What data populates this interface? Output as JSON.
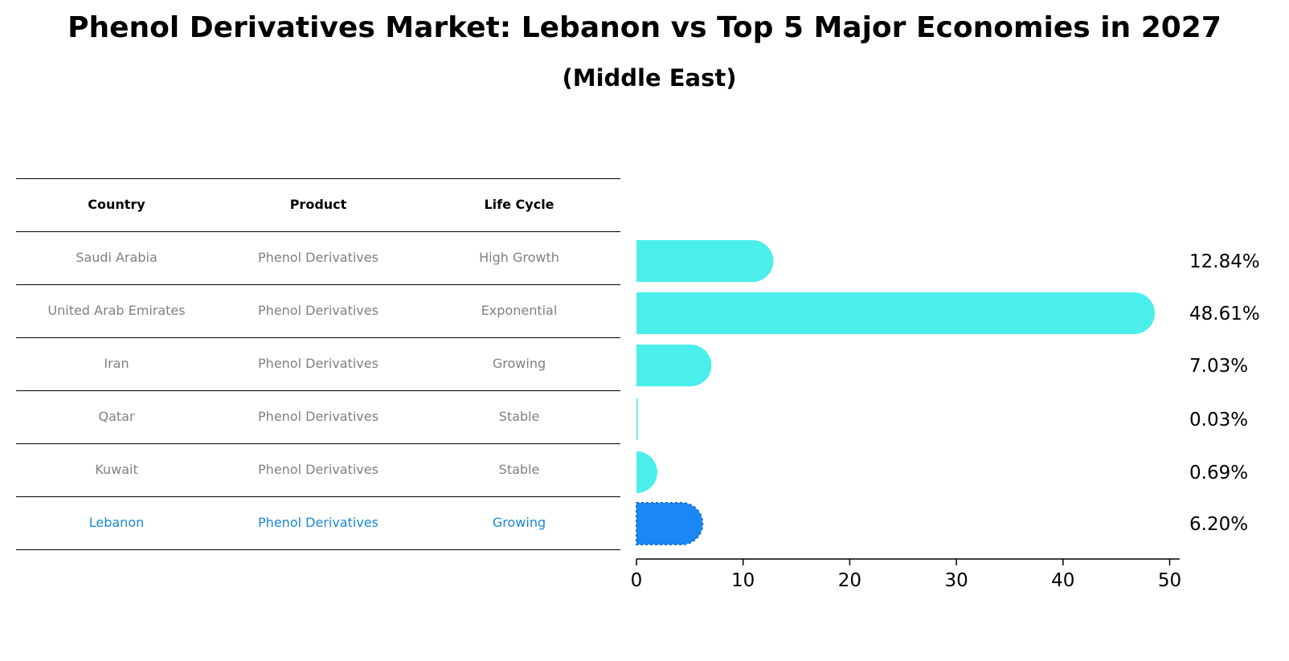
{
  "chart_data": {
    "type": "bar",
    "orientation": "horizontal",
    "title": "Phenol Derivatives Market: Lebanon vs Top 5 Major Economies in 2027",
    "subtitle": "(Middle East)",
    "categories": [
      "Saudi Arabia",
      "United Arab Emirates",
      "Iran",
      "Qatar",
      "Kuwait",
      "Lebanon"
    ],
    "values": [
      12.84,
      48.61,
      7.03,
      0.03,
      0.69,
      6.2
    ],
    "value_labels": [
      "12.84%",
      "48.61%",
      "7.03%",
      "0.03%",
      "0.69%",
      "6.20%"
    ],
    "xlim": [
      0,
      50
    ],
    "xticks": [
      0,
      10,
      20,
      30,
      40,
      50
    ],
    "grid": false,
    "highlight_index": 5,
    "colors": {
      "default": "#4aeeea",
      "highlight": "#1a87f5",
      "highlight_text": "#1a87d6"
    },
    "table": {
      "headers": [
        "Country",
        "Product",
        "Life Cycle"
      ],
      "rows": [
        [
          "Saudi Arabia",
          "Phenol Derivatives",
          "High Growth"
        ],
        [
          "United Arab Emirates",
          "Phenol Derivatives",
          "Exponential"
        ],
        [
          "Iran",
          "Phenol Derivatives",
          "Growing"
        ],
        [
          "Qatar",
          "Phenol Derivatives",
          "Stable"
        ],
        [
          "Kuwait",
          "Phenol Derivatives",
          "Stable"
        ],
        [
          "Lebanon",
          "Phenol Derivatives",
          "Growing"
        ]
      ]
    }
  }
}
